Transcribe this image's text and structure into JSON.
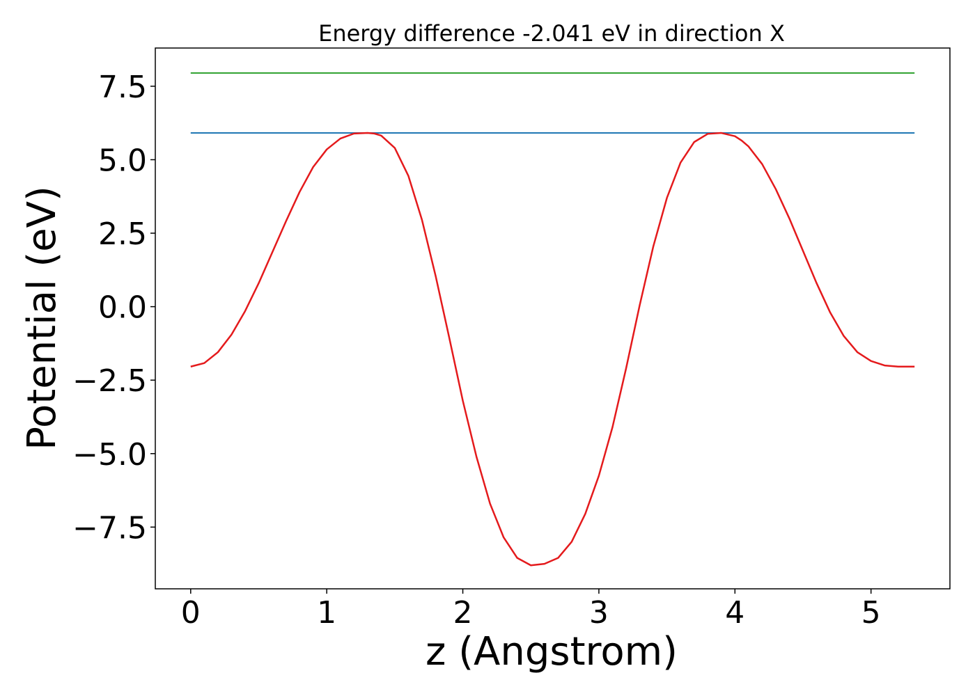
{
  "chart_data": {
    "type": "line",
    "title": "Energy difference -2.041 eV in direction X",
    "xlabel": "z (Angstrom)",
    "ylabel": "Potential (eV)",
    "xlim": [
      -0.26,
      5.58
    ],
    "ylim": [
      -9.6,
      8.8
    ],
    "xticks": [
      {
        "value": 0,
        "label": "0"
      },
      {
        "value": 1,
        "label": "1"
      },
      {
        "value": 2,
        "label": "2"
      },
      {
        "value": 3,
        "label": "3"
      },
      {
        "value": 4,
        "label": "4"
      },
      {
        "value": 5,
        "label": "5"
      }
    ],
    "yticks": [
      {
        "value": 7.5,
        "label": "7.5"
      },
      {
        "value": 5.0,
        "label": "5.0"
      },
      {
        "value": 2.5,
        "label": "2.5"
      },
      {
        "value": 0.0,
        "label": "0.0"
      },
      {
        "value": -2.5,
        "label": "−2.5"
      },
      {
        "value": -5.0,
        "label": "−5.0"
      },
      {
        "value": -7.5,
        "label": "−7.5"
      }
    ],
    "grid": false,
    "series": [
      {
        "color": "#2ca02c",
        "x": [
          0,
          5.32
        ],
        "y": [
          7.95,
          7.95
        ]
      },
      {
        "color": "#1f77b4",
        "x": [
          0,
          5.32
        ],
        "y": [
          5.91,
          5.91
        ]
      },
      {
        "color": "#e41a1c",
        "x": [
          0.0,
          0.1,
          0.2,
          0.3,
          0.4,
          0.5,
          0.6,
          0.7,
          0.8,
          0.9,
          1.0,
          1.1,
          1.2,
          1.3,
          1.35,
          1.4,
          1.5,
          1.6,
          1.7,
          1.8,
          1.9,
          2.0,
          2.1,
          2.2,
          2.3,
          2.4,
          2.5,
          2.6,
          2.7,
          2.8,
          2.9,
          3.0,
          3.1,
          3.2,
          3.3,
          3.4,
          3.5,
          3.6,
          3.7,
          3.8,
          3.9,
          4.0,
          4.05,
          4.1,
          4.2,
          4.3,
          4.4,
          4.5,
          4.6,
          4.7,
          4.8,
          4.9,
          5.0,
          5.1,
          5.2,
          5.32
        ],
        "y": [
          -2.04,
          -1.92,
          -1.55,
          -0.95,
          -0.15,
          0.8,
          1.85,
          2.9,
          3.9,
          4.75,
          5.35,
          5.72,
          5.89,
          5.91,
          5.89,
          5.82,
          5.4,
          4.45,
          2.95,
          1.05,
          -1.05,
          -3.2,
          -5.1,
          -6.7,
          -7.85,
          -8.55,
          -8.8,
          -8.75,
          -8.55,
          -8.0,
          -7.05,
          -5.75,
          -4.1,
          -2.1,
          0.05,
          2.05,
          3.7,
          4.9,
          5.6,
          5.88,
          5.91,
          5.8,
          5.65,
          5.45,
          4.85,
          4.0,
          3.0,
          1.9,
          0.8,
          -0.2,
          -1.0,
          -1.55,
          -1.85,
          -2.0,
          -2.04,
          -2.04
        ]
      }
    ]
  }
}
